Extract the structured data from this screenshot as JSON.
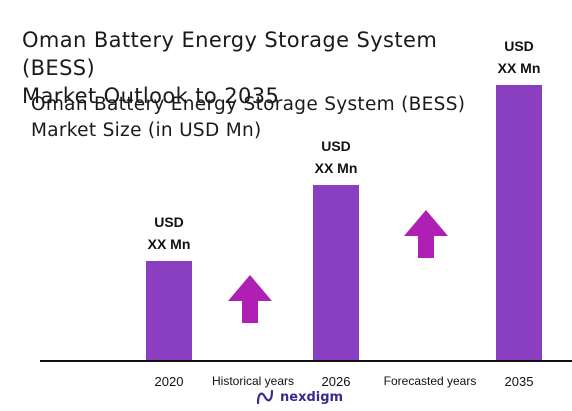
{
  "header": {
    "title_line1": "Oman Battery Energy Storage System (BESS)",
    "title_line2": "Market Outlook to 2035",
    "subtitle_line1": "Oman Battery Energy Storage System (BESS)",
    "subtitle_line2": "Market Size (in USD Mn)"
  },
  "chart_data": {
    "type": "bar",
    "categories": [
      "2020",
      "2026",
      "2035"
    ],
    "values": [
      100,
      176,
      276
    ],
    "value_labels": [
      [
        "USD",
        "XX Mn"
      ],
      [
        "USD",
        "XX Mn"
      ],
      [
        "USD",
        "XX Mn"
      ]
    ],
    "period_labels": [
      "Historical years",
      "Forecasted years"
    ],
    "bar_color": "#8a3fc0",
    "arrow_color": "#b01fb3",
    "axis_color": "#111111",
    "grid": false
  },
  "footer": {
    "brand_name": "nexdigm",
    "logo_icon": "nexdigm-logo-icon"
  }
}
